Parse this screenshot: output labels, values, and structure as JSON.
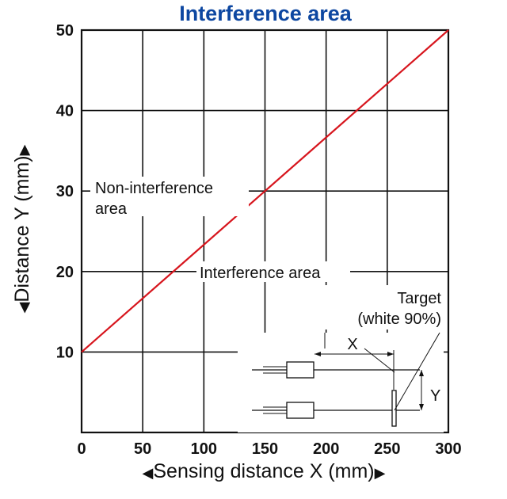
{
  "chart_data": {
    "type": "line",
    "title": "Interference area",
    "xlabel": "Sensing distance X (mm)",
    "ylabel": "Distance Y (mm)",
    "xlim": [
      0,
      300
    ],
    "ylim": [
      0,
      50
    ],
    "x_ticks": [
      0,
      50,
      100,
      150,
      200,
      250,
      300
    ],
    "y_ticks": [
      10,
      20,
      30,
      40,
      50
    ],
    "x_tick_labels": [
      "0",
      "50",
      "100",
      "150",
      "200",
      "250",
      "300"
    ],
    "y_tick_labels": [
      "10",
      "20",
      "30",
      "40",
      "50"
    ],
    "grid": true,
    "series": [
      {
        "color": "#d7151d",
        "x": [
          0,
          300
        ],
        "y": [
          10,
          50
        ]
      }
    ],
    "annotations": {
      "non_interference": "Non-interference\narea",
      "interference": "Interference area",
      "target": "Target\n(white 90%)",
      "x_symbol": "X",
      "y_symbol": "Y"
    }
  },
  "colors": {
    "title": "#0d47a1",
    "line": "#d7151d",
    "axis": "#111111"
  },
  "symbols": {
    "left_arrow": "◀",
    "right_arrow": "▶",
    "up_arrow": "▲",
    "down_arrow": "◀"
  }
}
